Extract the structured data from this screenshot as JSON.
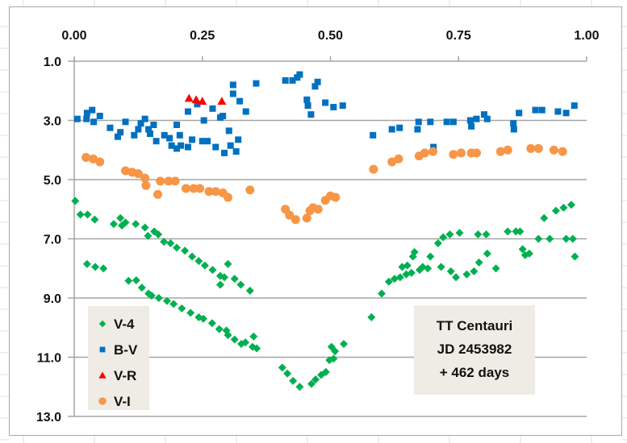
{
  "chart_data": {
    "type": "scatter",
    "title": "",
    "xlabel": "",
    "ylabel": "",
    "x_axis": {
      "position": "top",
      "range": [
        0.0,
        1.0
      ],
      "ticks": [
        0.0,
        0.25,
        0.5,
        0.75,
        1.0
      ],
      "tick_labels": [
        "0.00",
        "0.25",
        "0.50",
        "0.75",
        "1.00"
      ]
    },
    "y_axis": {
      "reversed": true,
      "range": [
        1.0,
        13.0
      ],
      "ticks": [
        1.0,
        3.0,
        5.0,
        7.0,
        9.0,
        11.0,
        13.0
      ],
      "tick_labels": [
        "1.0",
        "3.0",
        "5.0",
        "7.0",
        "9.0",
        "11.0",
        "13.0"
      ]
    },
    "grid": "horizontal",
    "legend": {
      "placement": "bottom-left",
      "entries": [
        {
          "name": "V-4",
          "marker": "diamond",
          "color": "#00b050"
        },
        {
          "name": "B-V",
          "marker": "square",
          "color": "#0070c0"
        },
        {
          "name": "V-R",
          "marker": "triangle",
          "color": "#ff0000"
        },
        {
          "name": "V-I",
          "marker": "circle",
          "color": "#f79646"
        }
      ]
    },
    "annotation": {
      "placement": "bottom-right",
      "lines": [
        "TT Centauri",
        "JD 2453982",
        "+ 462 days"
      ]
    },
    "series": [
      {
        "name": "V-4",
        "marker": "diamond",
        "color": "#00b050",
        "points": [
          [
            0.002,
            5.72
          ],
          [
            0.012,
            6.18
          ],
          [
            0.026,
            6.18
          ],
          [
            0.04,
            6.35
          ],
          [
            0.077,
            6.5
          ],
          [
            0.09,
            6.3
          ],
          [
            0.093,
            6.55
          ],
          [
            0.1,
            6.45
          ],
          [
            0.12,
            6.5
          ],
          [
            0.138,
            6.62
          ],
          [
            0.144,
            6.9
          ],
          [
            0.156,
            6.75
          ],
          [
            0.164,
            6.85
          ],
          [
            0.175,
            7.1
          ],
          [
            0.188,
            7.15
          ],
          [
            0.2,
            7.3
          ],
          [
            0.216,
            7.4
          ],
          [
            0.23,
            7.6
          ],
          [
            0.243,
            7.75
          ],
          [
            0.255,
            7.9
          ],
          [
            0.27,
            8.05
          ],
          [
            0.285,
            8.25
          ],
          [
            0.3,
            7.85
          ],
          [
            0.293,
            8.3
          ],
          [
            0.285,
            8.55
          ],
          [
            0.313,
            8.35
          ],
          [
            0.325,
            8.55
          ],
          [
            0.343,
            8.75
          ],
          [
            0.025,
            7.85
          ],
          [
            0.041,
            7.95
          ],
          [
            0.057,
            8.0
          ],
          [
            0.106,
            8.42
          ],
          [
            0.121,
            8.4
          ],
          [
            0.132,
            8.65
          ],
          [
            0.145,
            8.85
          ],
          [
            0.151,
            8.92
          ],
          [
            0.165,
            9.0
          ],
          [
            0.181,
            9.1
          ],
          [
            0.194,
            9.2
          ],
          [
            0.21,
            9.35
          ],
          [
            0.227,
            9.5
          ],
          [
            0.243,
            9.65
          ],
          [
            0.252,
            9.7
          ],
          [
            0.269,
            9.85
          ],
          [
            0.283,
            10.05
          ],
          [
            0.297,
            10.1
          ],
          [
            0.3,
            10.25
          ],
          [
            0.313,
            10.4
          ],
          [
            0.326,
            10.55
          ],
          [
            0.334,
            10.5
          ],
          [
            0.348,
            10.65
          ],
          [
            0.35,
            10.3
          ],
          [
            0.356,
            10.7
          ],
          [
            0.406,
            11.35
          ],
          [
            0.416,
            11.55
          ],
          [
            0.427,
            11.8
          ],
          [
            0.44,
            12.0
          ],
          [
            0.463,
            11.9
          ],
          [
            0.471,
            11.75
          ],
          [
            0.482,
            11.6
          ],
          [
            0.491,
            11.5
          ],
          [
            0.498,
            11.1
          ],
          [
            0.506,
            11.05
          ],
          [
            0.509,
            10.8
          ],
          [
            0.502,
            10.65
          ],
          [
            0.526,
            10.55
          ],
          [
            0.58,
            9.65
          ],
          [
            0.6,
            8.85
          ],
          [
            0.614,
            8.45
          ],
          [
            0.625,
            8.35
          ],
          [
            0.636,
            8.3
          ],
          [
            0.648,
            8.2
          ],
          [
            0.658,
            8.15
          ],
          [
            0.674,
            8.05
          ],
          [
            0.68,
            7.95
          ],
          [
            0.64,
            7.95
          ],
          [
            0.65,
            7.9
          ],
          [
            0.661,
            7.6
          ],
          [
            0.664,
            7.45
          ],
          [
            0.69,
            8.0
          ],
          [
            0.695,
            7.6
          ],
          [
            0.71,
            7.15
          ],
          [
            0.72,
            6.95
          ],
          [
            0.733,
            6.85
          ],
          [
            0.716,
            7.95
          ],
          [
            0.735,
            8.1
          ],
          [
            0.745,
            8.3
          ],
          [
            0.766,
            8.2
          ],
          [
            0.78,
            8.1
          ],
          [
            0.79,
            7.8
          ],
          [
            0.806,
            7.5
          ],
          [
            0.823,
            8.0
          ],
          [
            0.752,
            6.8
          ],
          [
            0.788,
            6.85
          ],
          [
            0.804,
            6.85
          ],
          [
            0.846,
            6.75
          ],
          [
            0.862,
            6.75
          ],
          [
            0.87,
            6.75
          ],
          [
            0.875,
            7.35
          ],
          [
            0.88,
            7.55
          ],
          [
            0.888,
            7.5
          ],
          [
            0.906,
            7.0
          ],
          [
            0.928,
            7.0
          ],
          [
            0.96,
            7.0
          ],
          [
            0.973,
            7.0
          ],
          [
            0.977,
            7.6
          ],
          [
            0.917,
            6.3
          ],
          [
            0.94,
            6.05
          ],
          [
            0.955,
            5.95
          ],
          [
            0.97,
            5.85
          ]
        ]
      },
      {
        "name": "B-V",
        "marker": "square",
        "color": "#0070c0",
        "points": [
          [
            0.006,
            2.95
          ],
          [
            0.024,
            2.95
          ],
          [
            0.025,
            2.75
          ],
          [
            0.035,
            2.65
          ],
          [
            0.038,
            3.05
          ],
          [
            0.05,
            2.85
          ],
          [
            0.07,
            3.25
          ],
          [
            0.085,
            3.55
          ],
          [
            0.09,
            3.4
          ],
          [
            0.1,
            3.05
          ],
          [
            0.117,
            3.5
          ],
          [
            0.125,
            3.3
          ],
          [
            0.13,
            3.1
          ],
          [
            0.138,
            2.95
          ],
          [
            0.145,
            3.3
          ],
          [
            0.148,
            3.45
          ],
          [
            0.155,
            3.15
          ],
          [
            0.16,
            3.7
          ],
          [
            0.176,
            3.5
          ],
          [
            0.186,
            3.6
          ],
          [
            0.19,
            3.85
          ],
          [
            0.2,
            3.15
          ],
          [
            0.206,
            3.5
          ],
          [
            0.208,
            3.85
          ],
          [
            0.2,
            3.95
          ],
          [
            0.222,
            2.7
          ],
          [
            0.24,
            2.45
          ],
          [
            0.253,
            3.0
          ],
          [
            0.27,
            2.6
          ],
          [
            0.285,
            2.9
          ],
          [
            0.29,
            2.85
          ],
          [
            0.302,
            3.35
          ],
          [
            0.31,
            2.1
          ],
          [
            0.31,
            1.8
          ],
          [
            0.323,
            2.35
          ],
          [
            0.335,
            2.7
          ],
          [
            0.355,
            1.75
          ],
          [
            0.222,
            3.9
          ],
          [
            0.23,
            3.65
          ],
          [
            0.25,
            3.7
          ],
          [
            0.26,
            3.7
          ],
          [
            0.276,
            3.9
          ],
          [
            0.293,
            4.1
          ],
          [
            0.305,
            3.85
          ],
          [
            0.316,
            4.05
          ],
          [
            0.32,
            3.65
          ],
          [
            0.412,
            1.65
          ],
          [
            0.426,
            1.65
          ],
          [
            0.435,
            1.55
          ],
          [
            0.44,
            1.45
          ],
          [
            0.454,
            2.3
          ],
          [
            0.456,
            2.5
          ],
          [
            0.462,
            2.8
          ],
          [
            0.47,
            1.85
          ],
          [
            0.475,
            1.7
          ],
          [
            0.49,
            2.4
          ],
          [
            0.506,
            2.55
          ],
          [
            0.524,
            2.5
          ],
          [
            0.583,
            3.5
          ],
          [
            0.62,
            3.3
          ],
          [
            0.635,
            3.25
          ],
          [
            0.67,
            3.3
          ],
          [
            0.672,
            3.05
          ],
          [
            0.695,
            3.05
          ],
          [
            0.701,
            3.9
          ],
          [
            0.727,
            3.05
          ],
          [
            0.74,
            3.05
          ],
          [
            0.773,
            3.0
          ],
          [
            0.775,
            3.2
          ],
          [
            0.785,
            2.95
          ],
          [
            0.8,
            2.8
          ],
          [
            0.806,
            2.95
          ],
          [
            0.857,
            3.1
          ],
          [
            0.858,
            3.3
          ],
          [
            0.868,
            2.75
          ],
          [
            0.9,
            2.65
          ],
          [
            0.913,
            2.65
          ],
          [
            0.944,
            2.7
          ],
          [
            0.96,
            2.75
          ],
          [
            0.976,
            2.5
          ]
        ]
      },
      {
        "name": "V-R",
        "marker": "triangle",
        "color": "#ff0000",
        "points": [
          [
            0.224,
            2.25
          ],
          [
            0.238,
            2.3
          ],
          [
            0.25,
            2.35
          ],
          [
            0.288,
            2.35
          ]
        ]
      },
      {
        "name": "V-I",
        "marker": "circle",
        "color": "#f79646",
        "points": [
          [
            0.023,
            4.25
          ],
          [
            0.037,
            4.3
          ],
          [
            0.05,
            4.4
          ],
          [
            0.1,
            4.7
          ],
          [
            0.113,
            4.75
          ],
          [
            0.125,
            4.8
          ],
          [
            0.138,
            4.95
          ],
          [
            0.14,
            5.2
          ],
          [
            0.163,
            5.5
          ],
          [
            0.168,
            5.05
          ],
          [
            0.184,
            5.05
          ],
          [
            0.197,
            5.05
          ],
          [
            0.218,
            5.3
          ],
          [
            0.233,
            5.3
          ],
          [
            0.245,
            5.3
          ],
          [
            0.263,
            5.4
          ],
          [
            0.276,
            5.4
          ],
          [
            0.29,
            5.45
          ],
          [
            0.3,
            5.6
          ],
          [
            0.343,
            5.35
          ],
          [
            0.412,
            6.0
          ],
          [
            0.42,
            6.2
          ],
          [
            0.432,
            6.35
          ],
          [
            0.454,
            6.3
          ],
          [
            0.46,
            6.05
          ],
          [
            0.466,
            5.95
          ],
          [
            0.476,
            6.0
          ],
          [
            0.49,
            5.7
          ],
          [
            0.5,
            5.55
          ],
          [
            0.51,
            5.6
          ],
          [
            0.584,
            4.65
          ],
          [
            0.62,
            4.4
          ],
          [
            0.633,
            4.3
          ],
          [
            0.673,
            4.2
          ],
          [
            0.684,
            4.1
          ],
          [
            0.7,
            4.05
          ],
          [
            0.74,
            4.15
          ],
          [
            0.755,
            4.1
          ],
          [
            0.775,
            4.1
          ],
          [
            0.785,
            4.1
          ],
          [
            0.832,
            4.05
          ],
          [
            0.846,
            4.0
          ],
          [
            0.891,
            3.95
          ],
          [
            0.906,
            3.95
          ],
          [
            0.936,
            4.0
          ],
          [
            0.953,
            4.05
          ]
        ]
      }
    ]
  }
}
